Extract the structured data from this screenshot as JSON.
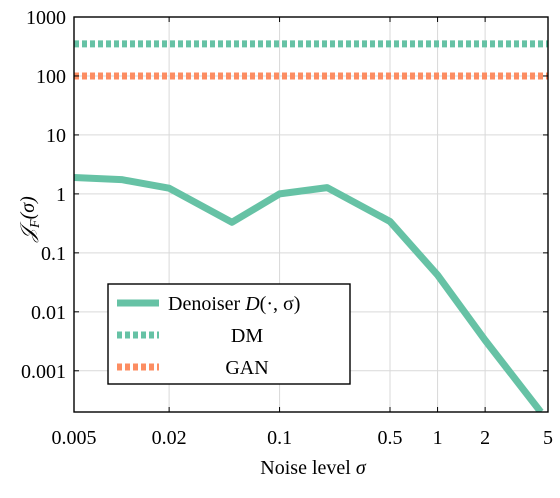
{
  "chart_data": {
    "type": "line",
    "xscale": "log",
    "yscale": "log",
    "xlim": [
      0.005,
      5
    ],
    "ylim": [
      0.0002,
      1000
    ],
    "xticks": [
      0.005,
      0.02,
      0.1,
      0.5,
      1,
      2,
      5
    ],
    "xtick_labels": [
      "0.005",
      "0.02",
      "0.1",
      "0.5",
      "1",
      "2",
      "5"
    ],
    "yticks": [
      0.001,
      0.01,
      0.1,
      1,
      10,
      100,
      1000
    ],
    "ytick_labels": [
      "0.001",
      "0.01",
      "0.1",
      "1",
      "10",
      "100",
      "1000"
    ],
    "xlabel_text": "Noise level ",
    "xlabel_symbol": "σ",
    "ylabel_main": "𝒥",
    "ylabel_sub": "F",
    "ylabel_arg": "(σ)",
    "grid": true,
    "legend_position": "bottom-left",
    "series": [
      {
        "name": "Denoiser D(·, σ)",
        "color": "#66c2a5",
        "style": "solid",
        "x": [
          0.005,
          0.01,
          0.02,
          0.05,
          0.1,
          0.2,
          0.5,
          1,
          2,
          4.5
        ],
        "y": [
          1.9,
          1.75,
          1.25,
          0.33,
          1.0,
          1.28,
          0.34,
          0.042,
          0.0033,
          0.0002
        ]
      },
      {
        "name": "DM",
        "color": "#66c2a5",
        "style": "dotted",
        "x": [
          0.005,
          5
        ],
        "y": [
          350,
          350
        ]
      },
      {
        "name": "GAN",
        "color": "#fc8d62",
        "style": "dotted",
        "x": [
          0.005,
          5
        ],
        "y": [
          100,
          100
        ]
      }
    ],
    "legend": {
      "denoiser_text": "Denoiser ",
      "denoiser_symbol": "D",
      "denoiser_args": "(·, σ)",
      "dm_text": "DM",
      "gan_text": "GAN"
    }
  }
}
